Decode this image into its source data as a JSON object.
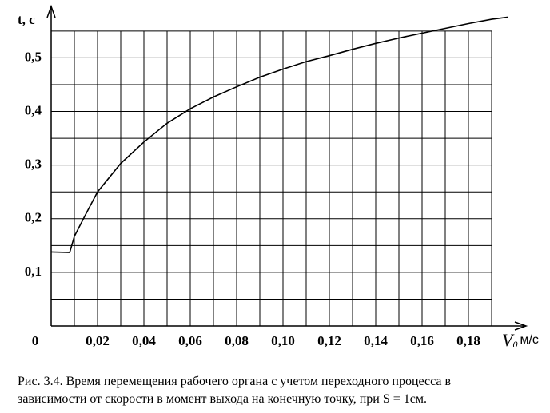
{
  "chart_data": {
    "type": "line",
    "ylabel": "t, с",
    "xlabel": {
      "symbol": "V",
      "sub": "0",
      "unit": "м/с"
    },
    "caption": [
      "Рис. 3.4. Время перемещения рабочего органа с учетом переходного процесса в",
      "зависимости от скорости в момент выхода на конечную точку, при S = 1см."
    ],
    "x": [
      0,
      0.008,
      0.01,
      0.015,
      0.02,
      0.03,
      0.04,
      0.05,
      0.06,
      0.07,
      0.08,
      0.09,
      0.1,
      0.11,
      0.12,
      0.13,
      0.14,
      0.15,
      0.16,
      0.17,
      0.18,
      0.19,
      0.197
    ],
    "series": [
      {
        "color": "#000000",
        "values": [
          0.138,
          0.137,
          0.167,
          0.209,
          0.25,
          0.303,
          0.343,
          0.378,
          0.405,
          0.427,
          0.446,
          0.464,
          0.479,
          0.493,
          0.504,
          0.516,
          0.527,
          0.537,
          0.546,
          0.555,
          0.564,
          0.572,
          0.576
        ]
      }
    ],
    "xlim": [
      0,
      0.2
    ],
    "ylim": [
      0,
      0.59
    ],
    "xticks": [
      0,
      {
        "value": 0.02,
        "label": "0,02"
      },
      {
        "value": 0.04,
        "label": "0,04"
      },
      {
        "value": 0.06,
        "label": "0,06"
      },
      {
        "value": 0.08,
        "label": "0,08"
      },
      {
        "value": 0.1,
        "label": "0,10"
      },
      {
        "value": 0.12,
        "label": "0,12"
      },
      {
        "value": 0.14,
        "label": "0,14"
      },
      {
        "value": 0.16,
        "label": "0,16"
      },
      {
        "value": 0.18,
        "label": "0,18"
      }
    ],
    "yticks": [
      {
        "value": 0.1,
        "label": "0,1"
      },
      {
        "value": 0.2,
        "label": "0,2"
      },
      {
        "value": 0.3,
        "label": "0,3"
      },
      {
        "value": 0.4,
        "label": "0,4"
      },
      {
        "value": 0.5,
        "label": "0,5"
      }
    ],
    "xgrid": [
      0.01,
      0.03,
      0.05,
      0.07,
      0.09,
      0.11,
      0.13,
      0.15,
      0.17,
      0.19
    ],
    "ygrid": [
      0.05,
      0.15,
      0.25,
      0.35,
      0.45,
      0.55
    ],
    "grid": true
  }
}
